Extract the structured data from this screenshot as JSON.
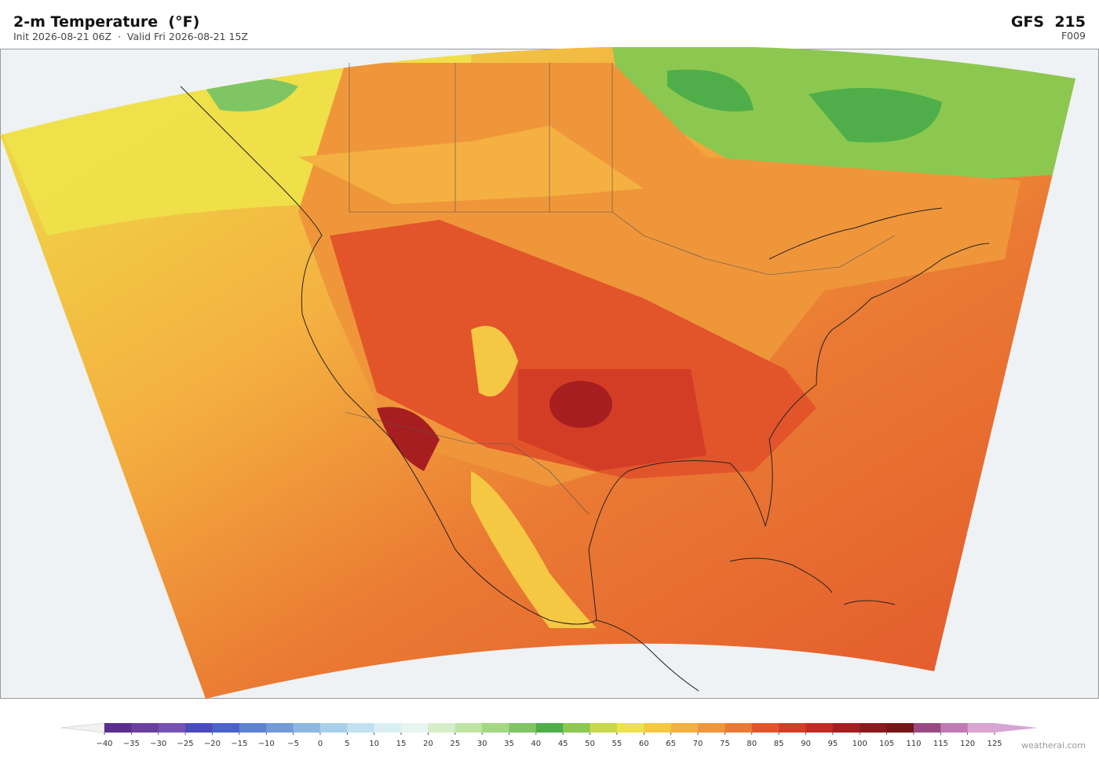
{
  "header": {
    "title": "2-m Temperature  (°F)",
    "subtitle": "Init 2026-08-21 06Z  ·  Valid Fri 2026-08-21 15Z",
    "model": "GFS  215",
    "forecast_hour": "F009"
  },
  "colorbar": {
    "ticks": [
      {
        "value": -40,
        "label": "−40"
      },
      {
        "value": -35,
        "label": "−35"
      },
      {
        "value": -30,
        "label": "−30"
      },
      {
        "value": -25,
        "label": "−25"
      },
      {
        "value": -20,
        "label": "−20"
      },
      {
        "value": -15,
        "label": "−15"
      },
      {
        "value": -10,
        "label": "−10"
      },
      {
        "value": -5,
        "label": "−5"
      },
      0,
      5,
      10,
      15,
      20,
      25,
      30,
      35,
      40,
      45,
      50,
      55,
      60,
      65,
      70,
      75,
      80,
      85,
      90,
      95,
      100,
      105,
      110,
      115,
      120,
      125
    ],
    "colors": [
      "#5a2d8f",
      "#6a3fa0",
      "#7552b3",
      "#4a4ac0",
      "#4a62cc",
      "#5c82d2",
      "#739ad9",
      "#8cb8e1",
      "#a8d0ea",
      "#c2e1f0",
      "#d9eff4",
      "#e8f5ee",
      "#d6edc9",
      "#bfe3a2",
      "#a2d882",
      "#7fc563",
      "#4fae4a",
      "#8cc84f",
      "#c6d94a",
      "#eee24a",
      "#f5c843",
      "#f4b040",
      "#ef963a",
      "#ea7a33",
      "#e2552b",
      "#d43d25",
      "#c02a22",
      "#a71e20",
      "#8c171c",
      "#761418",
      "#9a4a80",
      "#c07bb5",
      "#d9a5d0"
    ],
    "under_color": "#f2f2f2",
    "over_color": "#d4a6d6"
  },
  "credit": "weatherai.com"
}
